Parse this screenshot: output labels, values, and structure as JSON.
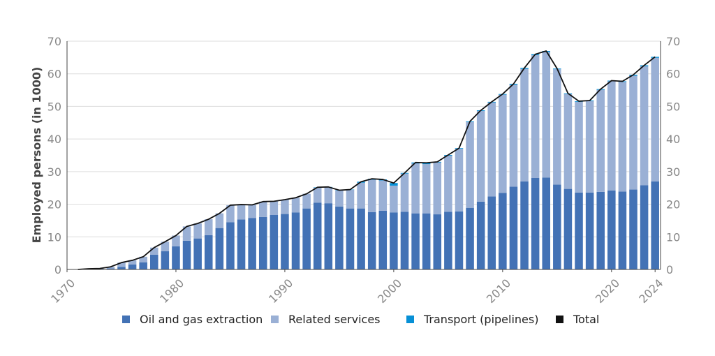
{
  "chart_data": {
    "type": "bar",
    "stacked": true,
    "ylabel": "Employed persons (in 1000)",
    "ylim": [
      0,
      70
    ],
    "yticks": [
      0,
      10,
      20,
      30,
      40,
      50,
      60,
      70
    ],
    "xticks": [
      1970,
      1980,
      1990,
      2000,
      2010,
      2020,
      2024
    ],
    "grid": true,
    "legend_position": "bottom",
    "x": [
      1971,
      1972,
      1973,
      1974,
      1975,
      1976,
      1977,
      1978,
      1979,
      1980,
      1981,
      1982,
      1983,
      1984,
      1985,
      1986,
      1987,
      1988,
      1989,
      1990,
      1991,
      1992,
      1993,
      1994,
      1995,
      1996,
      1997,
      1998,
      1999,
      2000,
      2001,
      2002,
      2003,
      2004,
      2005,
      2006,
      2007,
      2008,
      2009,
      2010,
      2011,
      2012,
      2013,
      2014,
      2015,
      2016,
      2017,
      2018,
      2019,
      2020,
      2021,
      2022,
      2023,
      2024
    ],
    "series": [
      {
        "name": "Oil and gas extraction",
        "color": "#4372b5",
        "values": [
          0.0,
          0.1,
          0.2,
          0.3,
          0.8,
          1.5,
          2.2,
          4.5,
          5.6,
          7.1,
          8.8,
          9.5,
          10.5,
          12.7,
          14.5,
          15.3,
          15.8,
          16.1,
          16.7,
          17.0,
          17.5,
          18.7,
          20.5,
          20.3,
          19.3,
          18.7,
          18.7,
          17.6,
          18.0,
          17.5,
          17.7,
          17.2,
          17.2,
          16.9,
          17.7,
          17.8,
          18.9,
          20.8,
          22.4,
          23.5,
          25.4,
          27.0,
          28.1,
          28.2,
          26.0,
          24.7,
          23.6,
          23.6,
          23.8,
          24.2,
          23.9,
          24.5,
          25.8,
          27.0
        ]
      },
      {
        "name": "Related services",
        "color": "#9ab0d5",
        "values": [
          0.0,
          0.1,
          0.1,
          0.5,
          1.3,
          1.3,
          1.7,
          2.2,
          2.9,
          3.3,
          4.4,
          4.6,
          4.9,
          4.5,
          5.2,
          4.6,
          4.0,
          4.7,
          4.2,
          4.4,
          4.5,
          4.5,
          4.6,
          4.9,
          4.9,
          5.7,
          7.9,
          9.9,
          9.3,
          8.2,
          11.7,
          15.3,
          15.1,
          15.9,
          17.2,
          19.2,
          26.3,
          27.8,
          28.8,
          30.1,
          31.2,
          34.5,
          37.6,
          38.5,
          35.4,
          29.1,
          27.8,
          28.0,
          31.3,
          33.5,
          33.6,
          34.9,
          36.5,
          37.9
        ]
      },
      {
        "name": "Transport (pipelines)",
        "color": "#0790d6",
        "values": [
          0,
          0,
          0,
          0,
          0,
          0,
          0,
          0,
          0,
          0,
          0,
          0,
          0,
          0,
          0,
          0,
          0,
          0,
          0,
          0,
          0,
          0,
          0.1,
          0.1,
          0.1,
          0.1,
          0.3,
          0.3,
          0.3,
          0.8,
          0.2,
          0.3,
          0.4,
          0.2,
          0.2,
          0.2,
          0.2,
          0.2,
          0.2,
          0.2,
          0.3,
          0.3,
          0.3,
          0.3,
          0.2,
          0.2,
          0.2,
          0.2,
          0.2,
          0.2,
          0.2,
          0.3,
          0.3,
          0.3
        ]
      },
      {
        "name": "Total",
        "color": "#111111",
        "type": "line",
        "values": [
          0.0,
          0.2,
          0.3,
          0.8,
          2.1,
          2.8,
          3.9,
          6.7,
          8.5,
          10.4,
          13.2,
          14.1,
          15.4,
          17.2,
          19.7,
          19.9,
          19.8,
          20.8,
          20.9,
          21.4,
          22.0,
          23.2,
          25.2,
          25.3,
          24.3,
          24.5,
          26.9,
          27.8,
          27.6,
          26.5,
          29.6,
          32.8,
          32.7,
          33.0,
          35.1,
          37.2,
          45.4,
          48.8,
          51.4,
          53.8,
          56.9,
          61.8,
          66.0,
          67.0,
          61.6,
          54.0,
          51.6,
          51.8,
          55.3,
          57.9,
          57.7,
          59.7,
          62.6,
          65.2
        ]
      }
    ]
  }
}
